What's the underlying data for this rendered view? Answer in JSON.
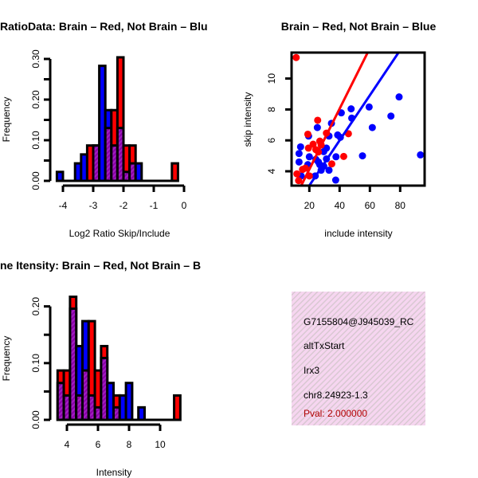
{
  "chart_data": [
    {
      "type": "bar",
      "title": "RatioData: Brain – Red, Not Brain – Blu",
      "xlabel": "Log2 Ratio Skip/Include",
      "ylabel": "Frequency",
      "xlim": [
        -4.3,
        0.1
      ],
      "ylim": [
        0,
        0.3
      ],
      "x_ticks": [
        "-4",
        "-3",
        "-2",
        "-1",
        "0"
      ],
      "y_ticks": [
        "0.00",
        "0.10",
        "0.20",
        "0.30"
      ],
      "bin_width": 0.2,
      "bins": [
        -4.2,
        -3.6,
        -3.4,
        -3.2,
        -3.0,
        -2.8,
        -2.6,
        -2.4,
        -2.2,
        -2.0,
        -1.8,
        -1.6,
        -0.4
      ],
      "series": [
        {
          "name": "Not Brain",
          "color": "#0000ff",
          "values": [
            0.022,
            0.043,
            0.065,
            0,
            0.087,
            0.283,
            0.174,
            0.087,
            0.13,
            0.022,
            0.043,
            0.043,
            0
          ]
        },
        {
          "name": "Brain",
          "color": "#ff0000",
          "values": [
            0,
            0,
            0,
            0.087,
            0.087,
            0,
            0.13,
            0.174,
            0.304,
            0.087,
            0.087,
            0,
            0.043
          ]
        }
      ]
    },
    {
      "type": "scatter",
      "title": "Brain – Red, Not Brain – Blue",
      "xlabel": "include intensity",
      "ylabel": "skip intensity",
      "xlim": [
        8.1,
        96.3
      ],
      "ylim": [
        3.09,
        11.7
      ],
      "x_ticks": [
        "20",
        "40",
        "60",
        "80"
      ],
      "y_ticks": [
        "4",
        "6",
        "8",
        "10"
      ],
      "series": [
        {
          "name": "Brain",
          "color": "#ff0000",
          "points": [
            [
              11.3,
              11.36
            ],
            [
              11.8,
              3.83
            ],
            [
              12.9,
              3.4
            ],
            [
              15.5,
              4.12
            ],
            [
              19.0,
              6.4
            ],
            [
              19.4,
              5.5
            ],
            [
              22.5,
              5.75
            ],
            [
              25.5,
              7.3
            ],
            [
              26.9,
              5.95
            ],
            [
              31.3,
              6.47
            ],
            [
              34.8,
              4.48
            ],
            [
              42.7,
              4.96
            ],
            [
              45.8,
              6.43
            ],
            [
              20,
              3.7
            ],
            [
              17.4,
              4.2
            ],
            [
              24.3,
              5.4
            ],
            [
              27.8,
              5.7
            ],
            [
              26,
              5.25
            ]
          ],
          "fit": {
            "slope": 0.196,
            "intercept": 0.21
          }
        },
        {
          "name": "Not Brain",
          "color": "#0000ff",
          "points": [
            [
              93.4,
              5.06
            ],
            [
              79.3,
              8.81
            ],
            [
              73.9,
              7.57
            ],
            [
              61.6,
              6.83
            ],
            [
              59.5,
              8.16
            ],
            [
              55.1,
              5.0
            ],
            [
              47.6,
              8.04
            ],
            [
              48,
              7.44
            ],
            [
              41.1,
              7.78
            ],
            [
              37.6,
              4.94
            ],
            [
              37.4,
              3.43
            ],
            [
              25.3,
              6.83
            ],
            [
              19.5,
              6.28
            ],
            [
              14.2,
              5.58
            ],
            [
              13.2,
              5.15
            ],
            [
              13.2,
              4.6
            ],
            [
              14.6,
              3.7
            ],
            [
              23.9,
              3.7
            ],
            [
              34.6,
              7.1
            ],
            [
              33.0,
              6.28
            ],
            [
              38.7,
              6.35
            ],
            [
              40.5,
              6.2
            ],
            [
              29.5,
              4.33
            ],
            [
              27.8,
              4.07
            ],
            [
              31.3,
              4.8
            ],
            [
              29.5,
              5.27
            ],
            [
              26,
              4.6
            ],
            [
              31.3,
              5.5
            ],
            [
              20,
              4.94
            ],
            [
              24.3,
              4.77
            ],
            [
              26.9,
              4.43
            ],
            [
              33,
              4.07
            ],
            [
              19,
              4.43
            ]
          ],
          "fit": {
            "slope": 0.146,
            "intercept": 0.16
          }
        }
      ]
    },
    {
      "type": "bar",
      "title": "ne Itensity: Brain – Red, Not Brain – B",
      "xlabel": "Intensity",
      "ylabel": "Frequency",
      "xlim": [
        3.3,
        11.5
      ],
      "ylim": [
        0,
        0.2
      ],
      "x_ticks": [
        "4",
        "6",
        "8",
        "10"
      ],
      "y_ticks": [
        "0.00",
        "0.10",
        "0.20"
      ],
      "bin_width": 0.4,
      "bins": [
        3.4,
        3.8,
        4.2,
        4.6,
        5.0,
        5.4,
        5.8,
        6.2,
        6.6,
        7.0,
        7.4,
        7.8,
        8.6,
        10.9
      ],
      "series": [
        {
          "name": "Not Brain",
          "color": "#0000ff",
          "values": [
            0.065,
            0.043,
            0.196,
            0.13,
            0.174,
            0.043,
            0.022,
            0.109,
            0.065,
            0.022,
            0.043,
            0.065,
            0.022,
            0
          ]
        },
        {
          "name": "Brain",
          "color": "#ff0000",
          "values": [
            0.087,
            0.087,
            0.217,
            0.043,
            0.087,
            0.174,
            0.087,
            0.13,
            0,
            0.043,
            0,
            0,
            0,
            0.043
          ]
        }
      ]
    }
  ],
  "info_panel": {
    "id": "G7155804@J945039_RC",
    "event_type": "altTxStart",
    "gene": "Irx3",
    "location": "chr8.24923-1.3",
    "pval": "Pval: 2.000000",
    "pval_color": "#b00000"
  }
}
